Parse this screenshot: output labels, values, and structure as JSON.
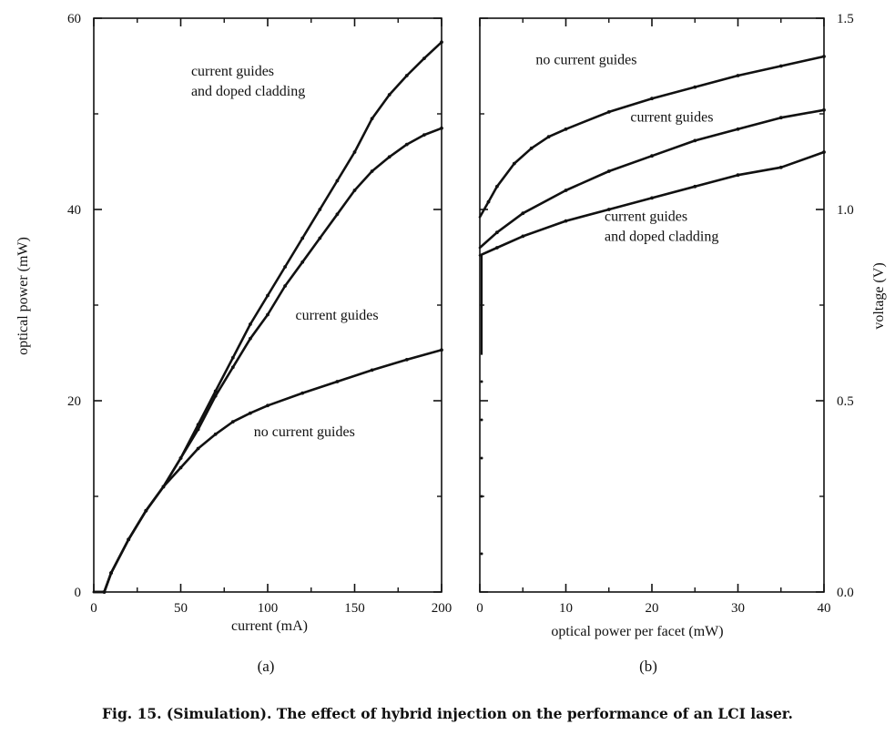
{
  "caption": "Fig. 15.   (Simulation). The effect of hybrid injection on the performance of an LCI laser.",
  "chart_data": [
    {
      "type": "line",
      "panel_label": "(a)",
      "xlabel": "current (mA)",
      "ylabel": "optical power (mW)",
      "xlim": [
        0,
        200
      ],
      "ylim": [
        0,
        60
      ],
      "xticks": [
        "0",
        "50",
        "100",
        "150",
        "200"
      ],
      "yticks": [
        "0",
        "20",
        "40",
        "60"
      ],
      "grid": false,
      "series": [
        {
          "name": "current guides and doped cladding",
          "points": [
            [
              0,
              0
            ],
            [
              6,
              0
            ],
            [
              10,
              2
            ],
            [
              20,
              5.5
            ],
            [
              30,
              8.5
            ],
            [
              40,
              11
            ],
            [
              50,
              14
            ],
            [
              60,
              17.5
            ],
            [
              70,
              21
            ],
            [
              80,
              24.5
            ],
            [
              90,
              28
            ],
            [
              100,
              31
            ],
            [
              110,
              34
            ],
            [
              120,
              37
            ],
            [
              130,
              40
            ],
            [
              140,
              43
            ],
            [
              150,
              46
            ],
            [
              160,
              49.5
            ],
            [
              170,
              52
            ],
            [
              180,
              54
            ],
            [
              190,
              55.8
            ],
            [
              200,
              57.5
            ]
          ]
        },
        {
          "name": "current guides",
          "points": [
            [
              0,
              0
            ],
            [
              6,
              0
            ],
            [
              10,
              2
            ],
            [
              20,
              5.5
            ],
            [
              30,
              8.5
            ],
            [
              40,
              11
            ],
            [
              50,
              14
            ],
            [
              60,
              17
            ],
            [
              70,
              20.5
            ],
            [
              80,
              23.5
            ],
            [
              90,
              26.5
            ],
            [
              100,
              29
            ],
            [
              110,
              32
            ],
            [
              120,
              34.5
            ],
            [
              130,
              37
            ],
            [
              140,
              39.5
            ],
            [
              150,
              42
            ],
            [
              160,
              44
            ],
            [
              170,
              45.5
            ],
            [
              180,
              46.8
            ],
            [
              190,
              47.8
            ],
            [
              200,
              48.5
            ]
          ]
        },
        {
          "name": "no current guides",
          "points": [
            [
              0,
              0
            ],
            [
              6,
              0
            ],
            [
              10,
              2
            ],
            [
              20,
              5.5
            ],
            [
              30,
              8.5
            ],
            [
              40,
              11
            ],
            [
              50,
              13
            ],
            [
              60,
              15
            ],
            [
              70,
              16.5
            ],
            [
              80,
              17.8
            ],
            [
              90,
              18.7
            ],
            [
              100,
              19.5
            ],
            [
              120,
              20.8
            ],
            [
              140,
              22
            ],
            [
              160,
              23.2
            ],
            [
              180,
              24.3
            ],
            [
              200,
              25.3
            ]
          ]
        }
      ],
      "annotations": [
        {
          "lines": [
            "current guides",
            "and doped cladding"
          ],
          "x": 56,
          "y": 54
        },
        {
          "lines": [
            "current guides"
          ],
          "x": 116,
          "y": 28.5
        },
        {
          "lines": [
            "no current guides"
          ],
          "x": 92,
          "y": 16.3
        }
      ]
    },
    {
      "type": "line",
      "panel_label": "(b)",
      "xlabel": "optical power per facet (mW)",
      "ylabel": "voltage (V)",
      "xlim": [
        0,
        40
      ],
      "ylim": [
        0.0,
        1.5
      ],
      "xticks": [
        "0",
        "10",
        "20",
        "30",
        "40"
      ],
      "yticks": [
        "0.0",
        "0.5",
        "1.0",
        "1.5"
      ],
      "grid": false,
      "series": [
        {
          "name": "no current guides",
          "points": [
            [
              0,
              0.98
            ],
            [
              1,
              1.02
            ],
            [
              2,
              1.06
            ],
            [
              4,
              1.12
            ],
            [
              6,
              1.16
            ],
            [
              8,
              1.19
            ],
            [
              10,
              1.21
            ],
            [
              15,
              1.255
            ],
            [
              20,
              1.29
            ],
            [
              25,
              1.32
            ],
            [
              30,
              1.35
            ],
            [
              35,
              1.375
            ],
            [
              40,
              1.4
            ]
          ]
        },
        {
          "name": "current guides",
          "points": [
            [
              0,
              0.9
            ],
            [
              2,
              0.94
            ],
            [
              5,
              0.99
            ],
            [
              10,
              1.05
            ],
            [
              15,
              1.1
            ],
            [
              20,
              1.14
            ],
            [
              25,
              1.18
            ],
            [
              30,
              1.21
            ],
            [
              35,
              1.24
            ],
            [
              40,
              1.26
            ]
          ]
        },
        {
          "name": "current guides and doped cladding",
          "points": [
            [
              0,
              0.88
            ],
            [
              2,
              0.9
            ],
            [
              5,
              0.93
            ],
            [
              10,
              0.97
            ],
            [
              15,
              1.0
            ],
            [
              20,
              1.03
            ],
            [
              25,
              1.06
            ],
            [
              30,
              1.09
            ],
            [
              35,
              1.11
            ],
            [
              40,
              1.15
            ]
          ]
        }
      ],
      "annotations": [
        {
          "lines": [
            "no current guides"
          ],
          "x": 6.5,
          "y": 1.38
        },
        {
          "lines": [
            "current guides"
          ],
          "x": 17.5,
          "y": 1.23
        },
        {
          "lines": [
            "current guides",
            "and doped cladding"
          ],
          "x": 14.5,
          "y": 0.97
        }
      ]
    }
  ]
}
